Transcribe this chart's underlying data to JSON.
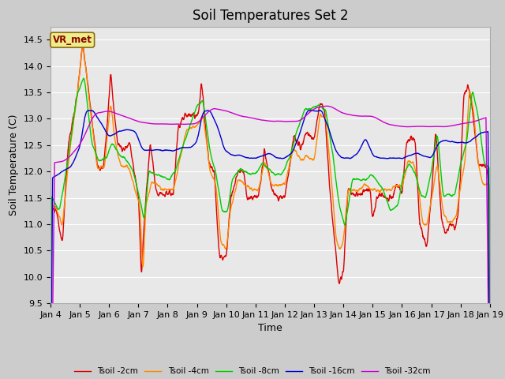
{
  "title": "Soil Temperatures Set 2",
  "xlabel": "Time",
  "ylabel": "Soil Temperature (C)",
  "ylim": [
    9.5,
    14.75
  ],
  "xlim": [
    0,
    15
  ],
  "x_tick_labels": [
    "Jan 4",
    "Jan 5",
    "Jan 6",
    "Jan 7",
    "Jan 8",
    "Jan 9",
    "Jan 10",
    "Jan 11",
    "Jan 12",
    "Jan 13",
    "Jan 14",
    "Jan 15",
    "Jan 16",
    "Jan 17",
    "Jan 18",
    "Jan 19"
  ],
  "series_colors": [
    "#dd0000",
    "#ff8800",
    "#00cc00",
    "#0000cc",
    "#cc00cc"
  ],
  "series_labels": [
    "Tsoil -2cm",
    "Tsoil -4cm",
    "Tsoil -8cm",
    "Tsoil -16cm",
    "Tsoil -32cm"
  ],
  "legend_label": "VR_met",
  "fig_bg": "#cccccc",
  "plot_bg": "#e8e8e8",
  "grid_color": "#ffffff",
  "title_fontsize": 12,
  "axis_fontsize": 9,
  "tick_fontsize": 8,
  "linewidth": 1.0
}
